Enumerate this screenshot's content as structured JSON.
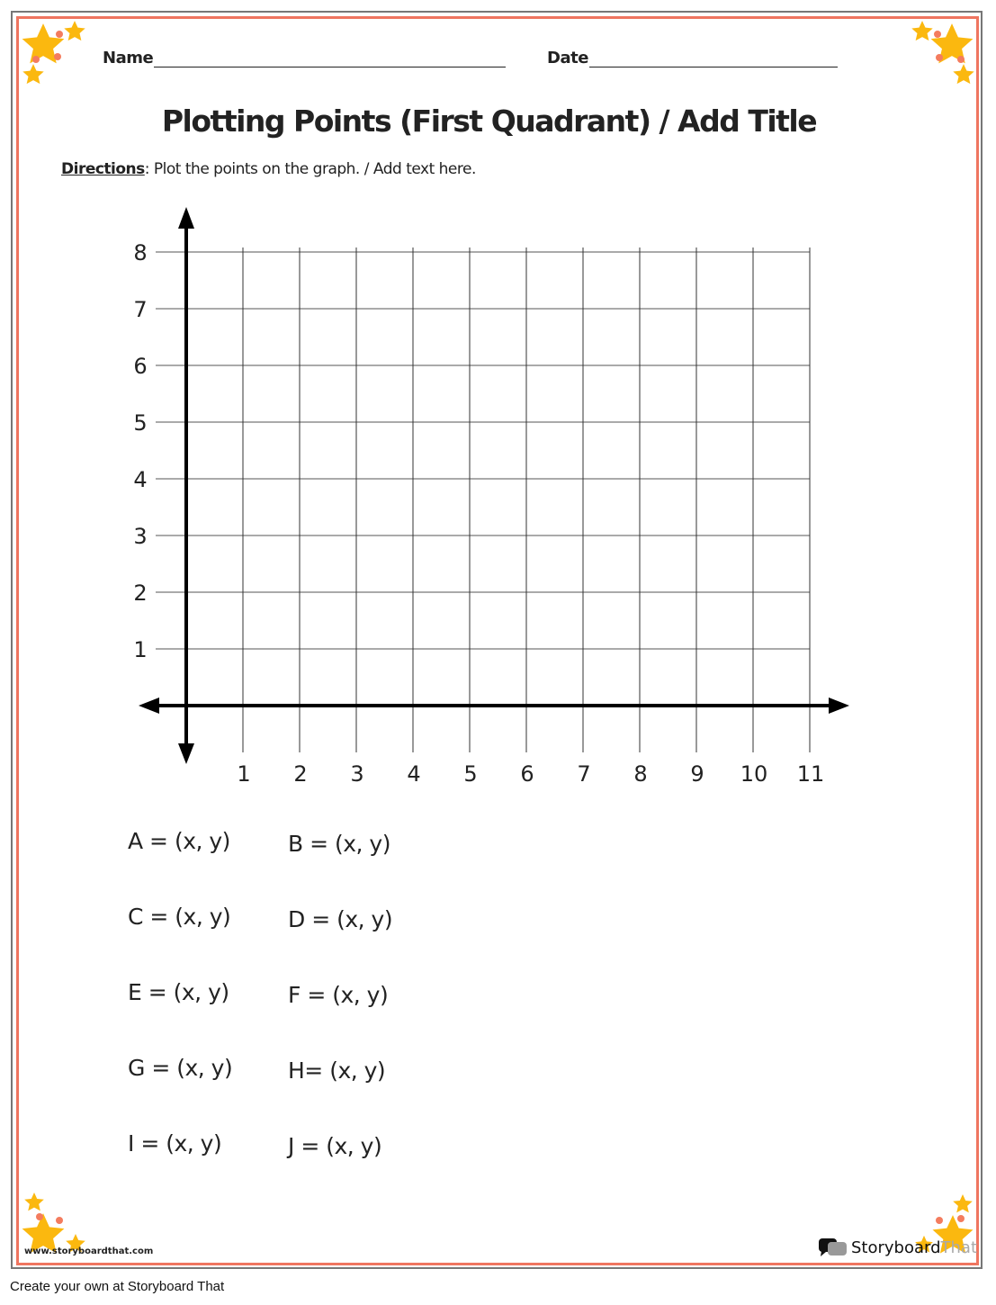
{
  "header": {
    "name_label": "Name",
    "date_label": "Date"
  },
  "title": "Plotting Points (First Quadrant) / Add Title",
  "directions": {
    "label": "Directions",
    "text": ": Plot the points on the graph. / Add text here."
  },
  "graph": {
    "x_ticks": [
      "1",
      "2",
      "3",
      "4",
      "5",
      "6",
      "7",
      "8",
      "9",
      "10",
      "11"
    ],
    "y_ticks": [
      "1",
      "2",
      "3",
      "4",
      "5",
      "6",
      "7",
      "8"
    ],
    "grid": true
  },
  "points": {
    "left": [
      "A = (x, y)",
      "C = (x, y)",
      "E = (x, y)",
      "G = (x, y)",
      "I = (x, y)"
    ],
    "right": [
      "B = (x, y)",
      "D = (x, y)",
      "F = (x, y)",
      "H= (x, y)",
      "J = (x, y)"
    ]
  },
  "footer": {
    "url": "www.storyboardthat.com",
    "logo_dark": "Storyboard",
    "logo_light": "That",
    "create": "Create your own at Storyboard That"
  },
  "colors": {
    "border": "#ef7560",
    "star": "#fbb80f",
    "dot": "#f47c5e"
  }
}
